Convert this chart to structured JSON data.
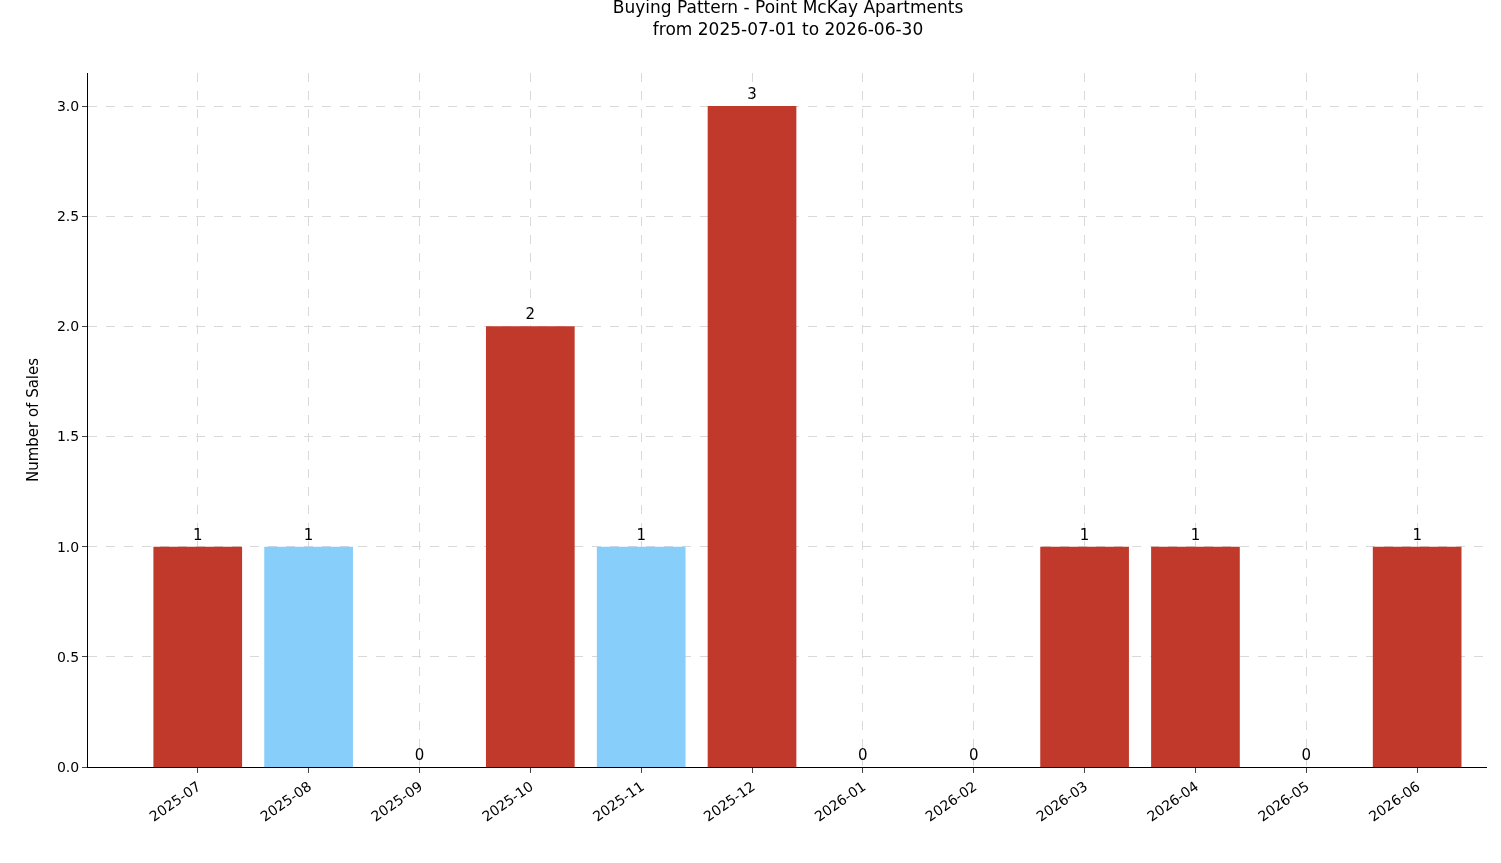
{
  "chart_data": {
    "type": "bar",
    "title": "Buying Pattern - Point McKay Apartments\nfrom 2025-07-01 to 2026-06-30",
    "ylabel": "Number of Sales",
    "categories": [
      "2025-07",
      "2025-08",
      "2025-09",
      "2025-10",
      "2025-11",
      "2025-12",
      "2026-01",
      "2026-02",
      "2026-03",
      "2026-04",
      "2026-05",
      "2026-06"
    ],
    "values": [
      1,
      1,
      0,
      2,
      1,
      3,
      0,
      0,
      1,
      1,
      0,
      1
    ],
    "colors": [
      "#c0392b",
      "#87cefa",
      "#c0392b",
      "#c0392b",
      "#87cefa",
      "#c0392b",
      "#c0392b",
      "#c0392b",
      "#c0392b",
      "#c0392b",
      "#c0392b",
      "#c0392b"
    ],
    "ylim": [
      0,
      3.15
    ],
    "yticks": [
      {
        "value": 0,
        "label": "0.0"
      },
      {
        "value": 0.5,
        "label": "0.5"
      },
      {
        "value": 1,
        "label": "1.0"
      },
      {
        "value": 1.5,
        "label": "1.5"
      },
      {
        "value": 2,
        "label": "2.0"
      },
      {
        "value": 2.5,
        "label": "2.5"
      },
      {
        "value": 3,
        "label": "3.0"
      }
    ],
    "grid": true,
    "data_labels": true
  }
}
